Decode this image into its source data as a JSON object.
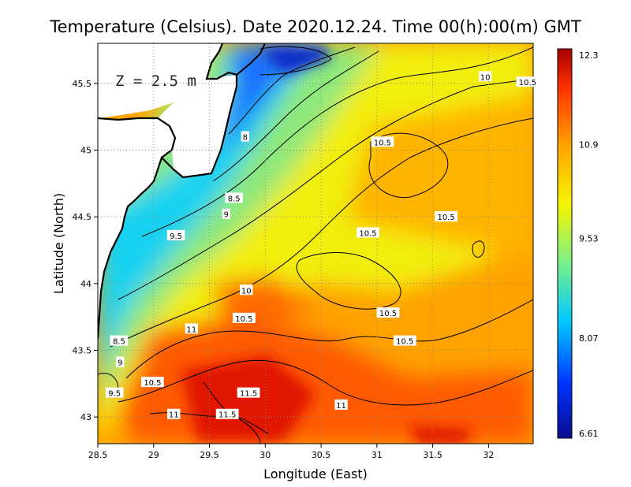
{
  "title": "Temperature (Celsius). Date 2020.12.24. Time 00(h):00(m)  GMT",
  "depth_label": "Z = 2.5 m",
  "x_axis": {
    "label": "Longitude (East)",
    "range": [
      28.5,
      32.4
    ],
    "ticks": [
      "28.5",
      "29",
      "29.5",
      "30",
      "30.5",
      "31",
      "31.5",
      "32"
    ]
  },
  "y_axis": {
    "label": "Latitude (North)",
    "range": [
      42.8,
      45.8
    ],
    "ticks": [
      "43",
      "43.5",
      "44",
      "44.5",
      "45",
      "45.5"
    ]
  },
  "colorbar": {
    "min": 6.61,
    "max": 12.3,
    "ticks": [
      "12.3",
      "10.9",
      "9.53",
      "8.07",
      "6.61"
    ],
    "colors": [
      "#0b0b8c",
      "#0033ff",
      "#00c8ff",
      "#7af08a",
      "#f5f500",
      "#ffa500",
      "#ff3000",
      "#a80000"
    ]
  },
  "contour_labels": [
    {
      "text": "10",
      "lon": 31.97,
      "lat": 45.55
    },
    {
      "text": "10.5",
      "lon": 32.35,
      "lat": 45.51
    },
    {
      "text": "8",
      "lon": 29.82,
      "lat": 45.1
    },
    {
      "text": "10.5",
      "lon": 31.05,
      "lat": 45.06
    },
    {
      "text": "8.5",
      "lon": 29.72,
      "lat": 44.64
    },
    {
      "text": "9",
      "lon": 29.65,
      "lat": 44.52
    },
    {
      "text": "10.5",
      "lon": 31.62,
      "lat": 44.5
    },
    {
      "text": "9.5",
      "lon": 29.2,
      "lat": 44.36
    },
    {
      "text": "10.5",
      "lon": 30.92,
      "lat": 44.38
    },
    {
      "text": "10",
      "lon": 29.83,
      "lat": 43.95
    },
    {
      "text": "10.5",
      "lon": 31.1,
      "lat": 43.78
    },
    {
      "text": "10.5",
      "lon": 29.81,
      "lat": 43.74
    },
    {
      "text": "11",
      "lon": 29.34,
      "lat": 43.66
    },
    {
      "text": "8.5",
      "lon": 28.69,
      "lat": 43.57
    },
    {
      "text": "10.5",
      "lon": 31.25,
      "lat": 43.57
    },
    {
      "text": "9",
      "lon": 28.7,
      "lat": 43.41
    },
    {
      "text": "10.5",
      "lon": 28.99,
      "lat": 43.26
    },
    {
      "text": "9.5",
      "lon": 28.65,
      "lat": 43.18
    },
    {
      "text": "11.5",
      "lon": 29.85,
      "lat": 43.18
    },
    {
      "text": "11",
      "lon": 30.68,
      "lat": 43.09
    },
    {
      "text": "11",
      "lon": 29.18,
      "lat": 43.02
    },
    {
      "text": "11.5",
      "lon": 29.66,
      "lat": 43.02
    }
  ]
}
